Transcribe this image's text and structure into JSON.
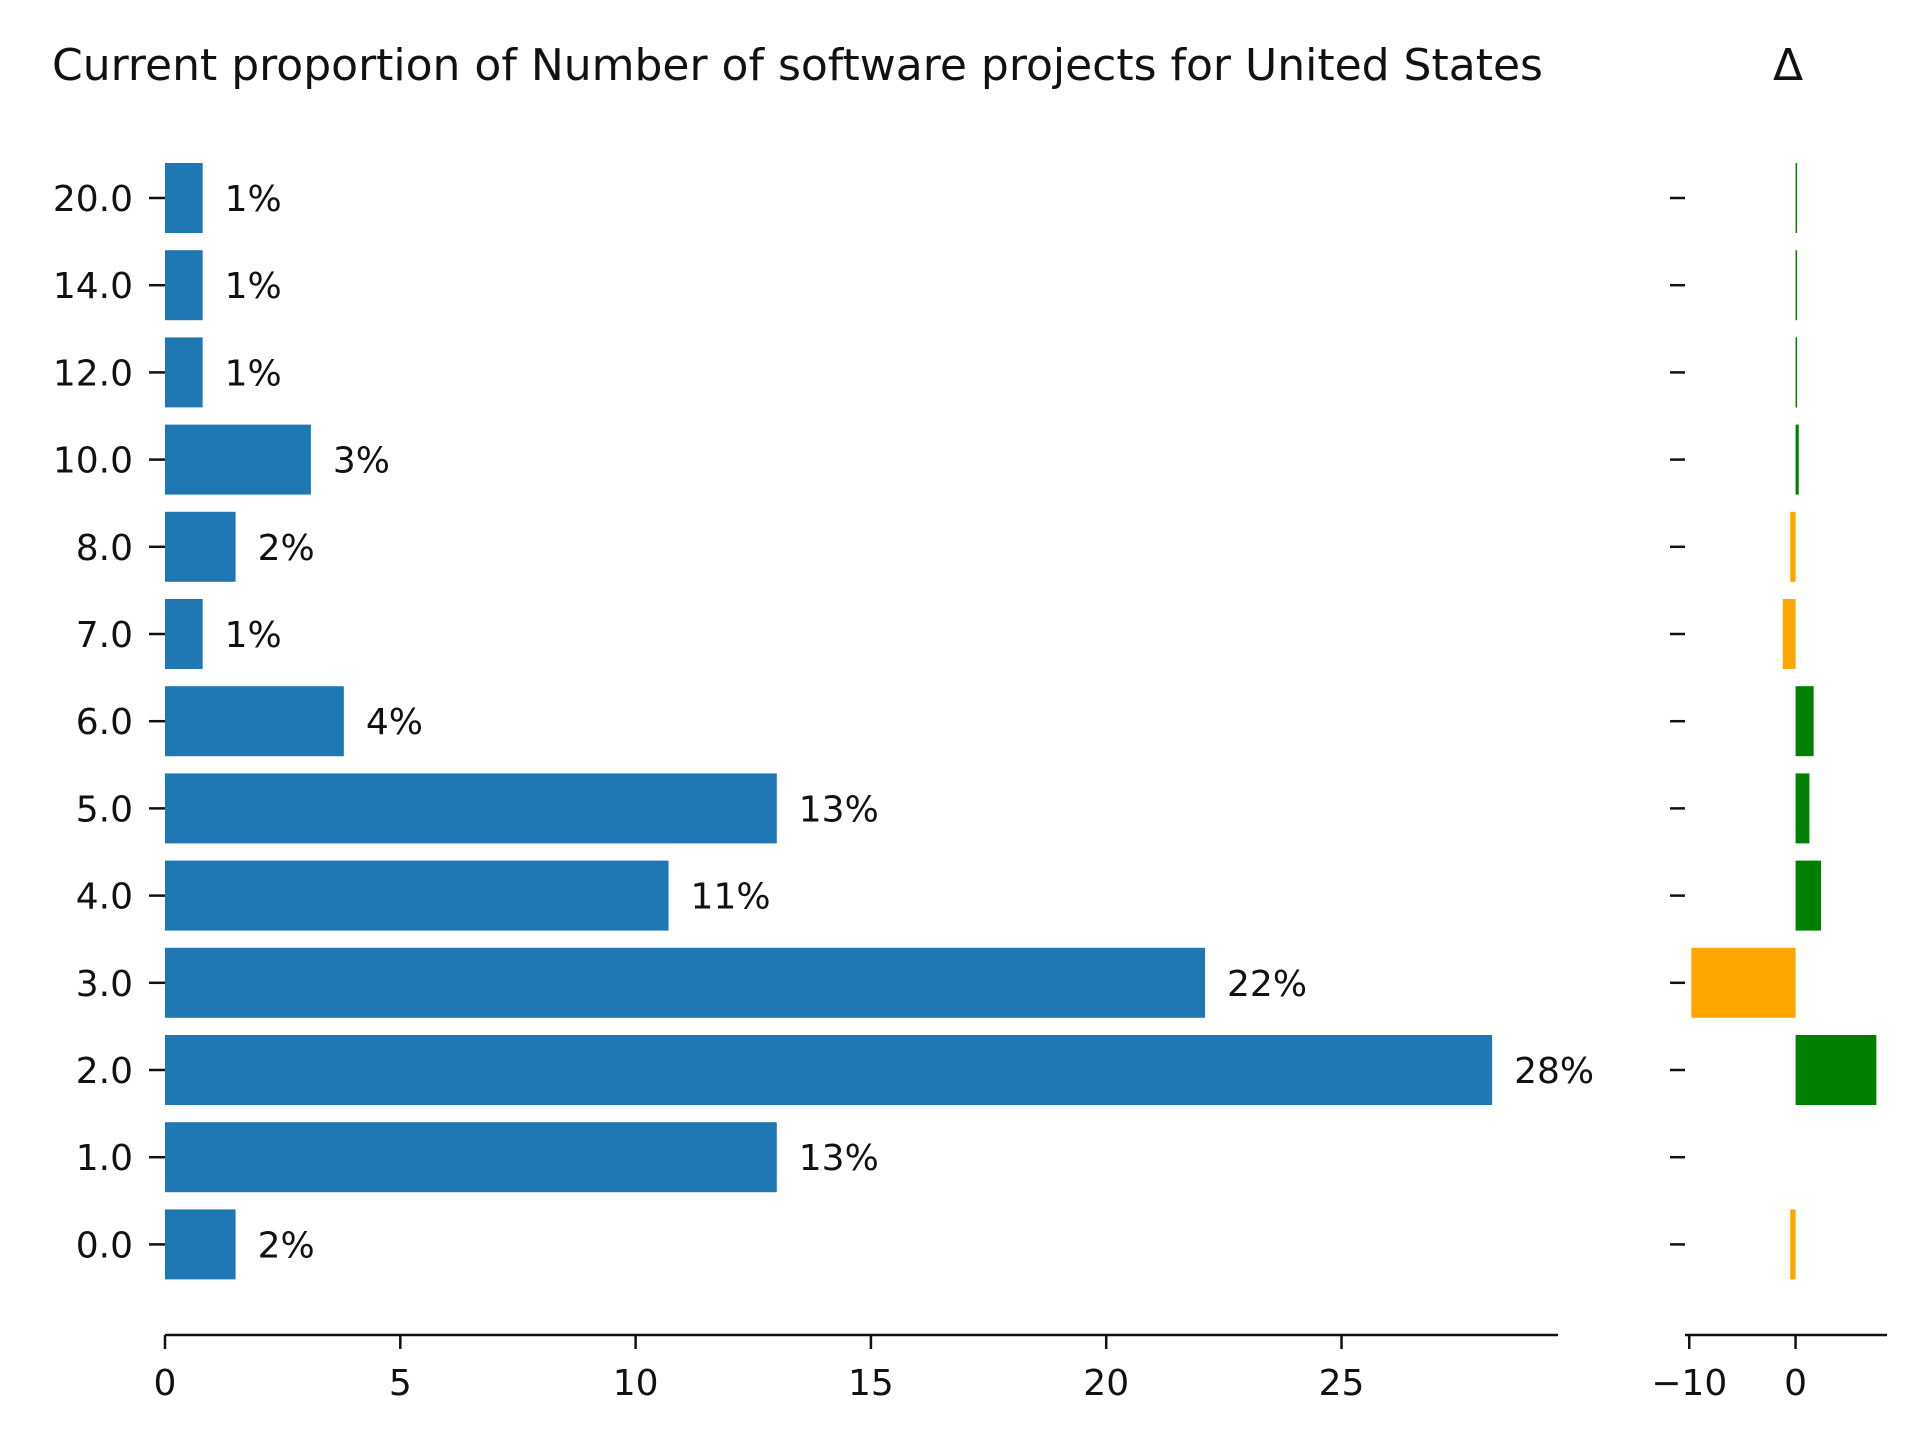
{
  "chart_data": {
    "type": "bar",
    "orientation": "horizontal",
    "title": "Current proportion of Number of software projects for United States",
    "delta_title": "Δ",
    "categories": [
      "0.0",
      "1.0",
      "2.0",
      "3.0",
      "4.0",
      "5.0",
      "6.0",
      "7.0",
      "8.0",
      "10.0",
      "12.0",
      "14.0",
      "20.0"
    ],
    "values": [
      1.5,
      13.0,
      28.2,
      22.1,
      10.7,
      13.0,
      3.8,
      0.8,
      1.5,
      3.1,
      0.8,
      0.8,
      0.8
    ],
    "value_labels": [
      "2%",
      "13%",
      "28%",
      "22%",
      "11%",
      "13%",
      "4%",
      "1%",
      "2%",
      "3%",
      "1%",
      "1%",
      "1%"
    ],
    "bar_color": "#1f77b4",
    "xlim": [
      0,
      29.6
    ],
    "xticks": [
      0,
      5,
      10,
      15,
      20,
      25
    ],
    "xtick_labels": [
      "0",
      "5",
      "10",
      "15",
      "20",
      "25"
    ],
    "delta": {
      "values": [
        -0.5,
        0.0,
        7.6,
        -9.8,
        2.4,
        1.3,
        1.7,
        -1.2,
        -0.5,
        0.3,
        0.1,
        0.1,
        0.1
      ],
      "xlim": [
        -10.4,
        8.6
      ],
      "xticks": [
        -10,
        0
      ],
      "xtick_labels": [
        "−10",
        "0"
      ],
      "positive_color": "#008000",
      "negative_color": "#ffa500"
    }
  }
}
